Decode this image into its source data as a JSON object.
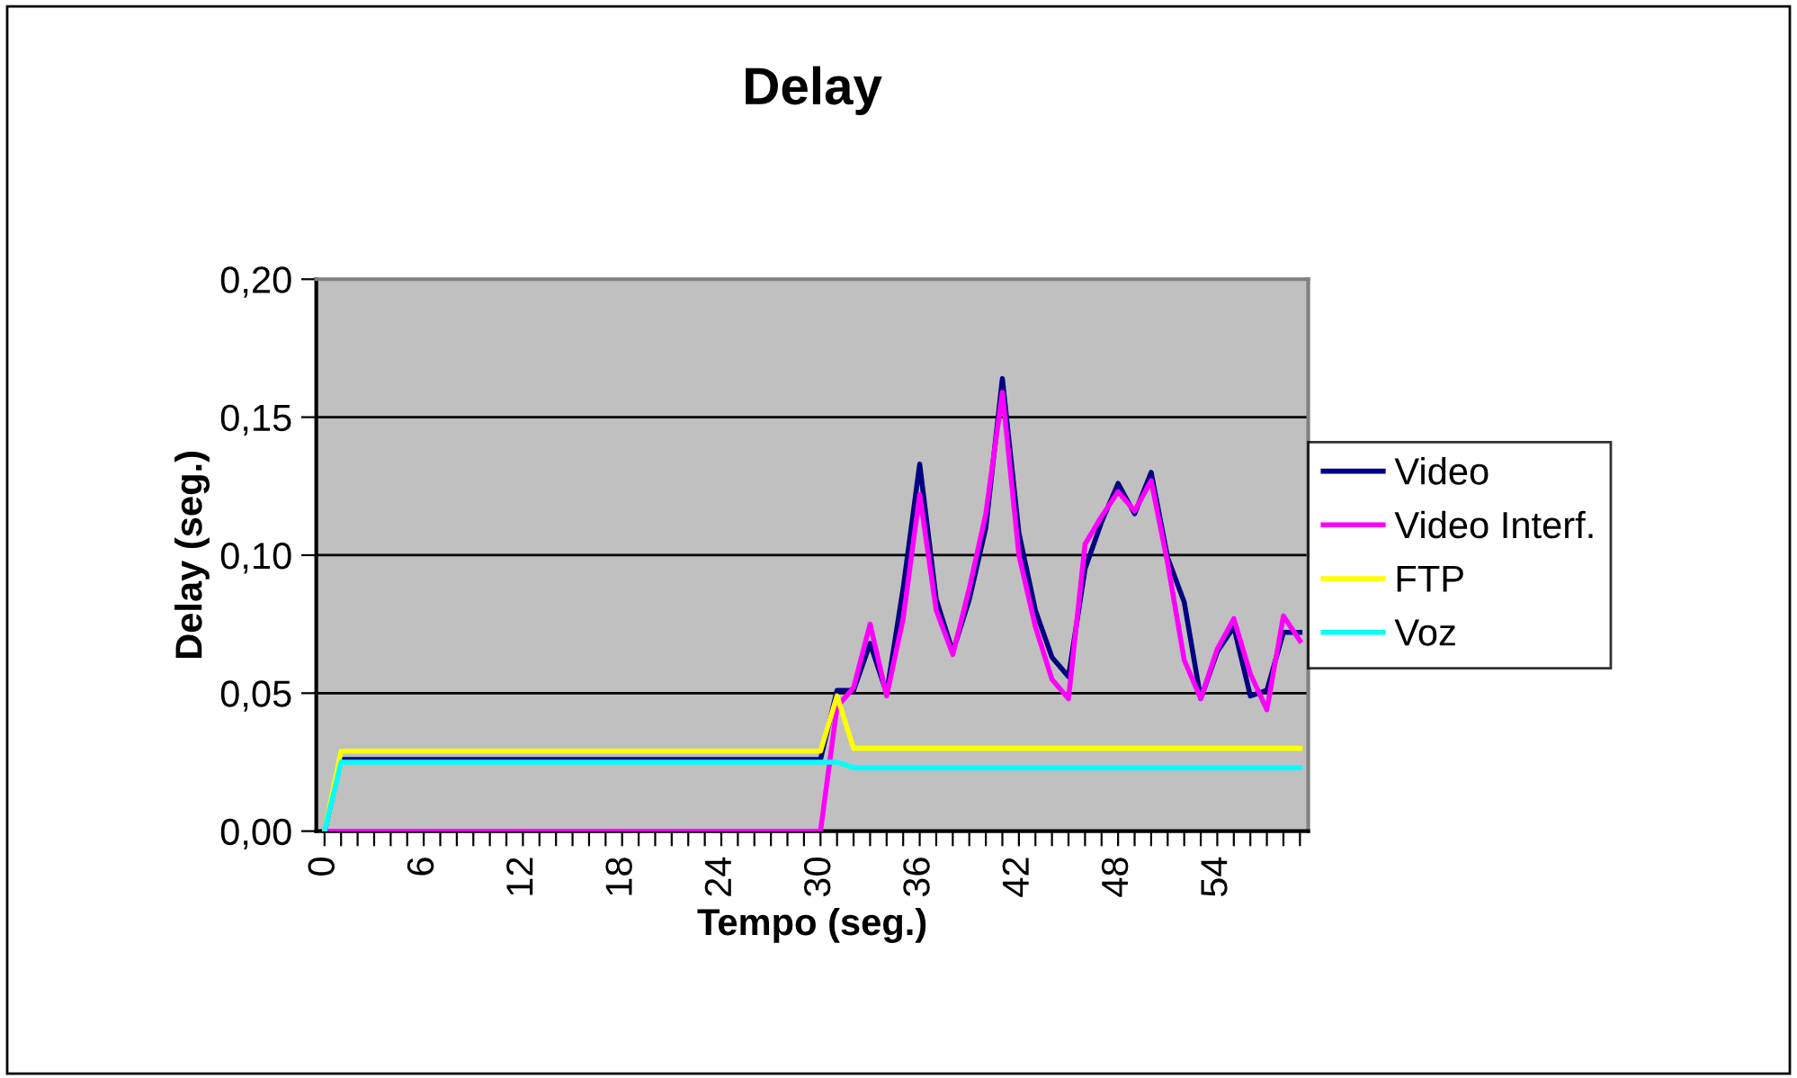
{
  "chart_data": {
    "type": "line",
    "title": "Delay",
    "xlabel": "Tempo (seg.)",
    "ylabel": "Delay (seg.)",
    "categories": [
      "0",
      null,
      null,
      null,
      null,
      null,
      "6",
      null,
      null,
      null,
      null,
      null,
      "12",
      null,
      null,
      null,
      null,
      null,
      "18",
      null,
      null,
      null,
      null,
      null,
      "24",
      null,
      null,
      null,
      null,
      null,
      "30",
      null,
      null,
      null,
      null,
      null,
      "36",
      null,
      null,
      null,
      null,
      null,
      "42",
      null,
      null,
      null,
      null,
      null,
      "48",
      null,
      null,
      null,
      null,
      null,
      "54",
      null,
      null,
      null,
      null,
      null
    ],
    "series": [
      {
        "name": "Video",
        "color": "#000080",
        "values": [
          0,
          0.026,
          0.026,
          0.026,
          0.026,
          0.026,
          0.026,
          0.026,
          0.026,
          0.026,
          0.026,
          0.026,
          0.026,
          0.026,
          0.026,
          0.026,
          0.026,
          0.026,
          0.026,
          0.026,
          0.026,
          0.026,
          0.026,
          0.026,
          0.026,
          0.026,
          0.026,
          0.026,
          0.026,
          0.026,
          0.026,
          0.051,
          0.051,
          0.068,
          0.05,
          0.088,
          0.133,
          0.084,
          0.065,
          0.084,
          0.11,
          0.164,
          0.108,
          0.08,
          0.063,
          0.056,
          0.095,
          0.112,
          0.126,
          0.115,
          0.13,
          0.099,
          0.083,
          0.048,
          0.065,
          0.074,
          0.049,
          0.051,
          0.072,
          0.072
        ]
      },
      {
        "name": "Video Interf.",
        "color": "#ff00ff",
        "values": [
          0,
          0,
          0,
          0,
          0,
          0,
          0,
          0,
          0,
          0,
          0,
          0,
          0,
          0,
          0,
          0,
          0,
          0,
          0,
          0,
          0,
          0,
          0,
          0,
          0,
          0,
          0,
          0,
          0,
          0,
          0,
          0.045,
          0.052,
          0.075,
          0.049,
          0.077,
          0.122,
          0.08,
          0.064,
          0.088,
          0.115,
          0.159,
          0.1,
          0.074,
          0.055,
          0.048,
          0.104,
          0.114,
          0.123,
          0.116,
          0.127,
          0.097,
          0.062,
          0.048,
          0.066,
          0.077,
          0.057,
          0.044,
          0.078,
          0.069
        ]
      },
      {
        "name": "FTP",
        "color": "#ffff00",
        "values": [
          0,
          0.029,
          0.029,
          0.029,
          0.029,
          0.029,
          0.029,
          0.029,
          0.029,
          0.029,
          0.029,
          0.029,
          0.029,
          0.029,
          0.029,
          0.029,
          0.029,
          0.029,
          0.029,
          0.029,
          0.029,
          0.029,
          0.029,
          0.029,
          0.029,
          0.029,
          0.029,
          0.029,
          0.029,
          0.029,
          0.029,
          0.049,
          0.03,
          0.03,
          0.03,
          0.03,
          0.03,
          0.03,
          0.03,
          0.03,
          0.03,
          0.03,
          0.03,
          0.03,
          0.03,
          0.03,
          0.03,
          0.03,
          0.03,
          0.03,
          0.03,
          0.03,
          0.03,
          0.03,
          0.03,
          0.03,
          0.03,
          0.03,
          0.03,
          0.03
        ]
      },
      {
        "name": "Voz",
        "color": "#00ffff",
        "values": [
          0,
          0.025,
          0.025,
          0.025,
          0.025,
          0.025,
          0.025,
          0.025,
          0.025,
          0.025,
          0.025,
          0.025,
          0.025,
          0.025,
          0.025,
          0.025,
          0.025,
          0.025,
          0.025,
          0.025,
          0.025,
          0.025,
          0.025,
          0.025,
          0.025,
          0.025,
          0.025,
          0.025,
          0.025,
          0.025,
          0.025,
          0.025,
          0.023,
          0.023,
          0.023,
          0.023,
          0.023,
          0.023,
          0.023,
          0.023,
          0.023,
          0.023,
          0.023,
          0.023,
          0.023,
          0.023,
          0.023,
          0.023,
          0.023,
          0.023,
          0.023,
          0.023,
          0.023,
          0.023,
          0.023,
          0.023,
          0.023,
          0.023,
          0.023,
          0.023
        ]
      }
    ],
    "ylim": [
      0,
      0.2
    ],
    "yticks": [
      {
        "value": 0,
        "label": "0,00"
      },
      {
        "value": 0.05,
        "label": "0,05"
      },
      {
        "value": 0.1,
        "label": "0,10"
      },
      {
        "value": 0.15,
        "label": "0,15"
      },
      {
        "value": 0.2,
        "label": "0,20"
      }
    ],
    "grid": "y",
    "legend": "right",
    "marker": "none",
    "line_style": "solid"
  }
}
